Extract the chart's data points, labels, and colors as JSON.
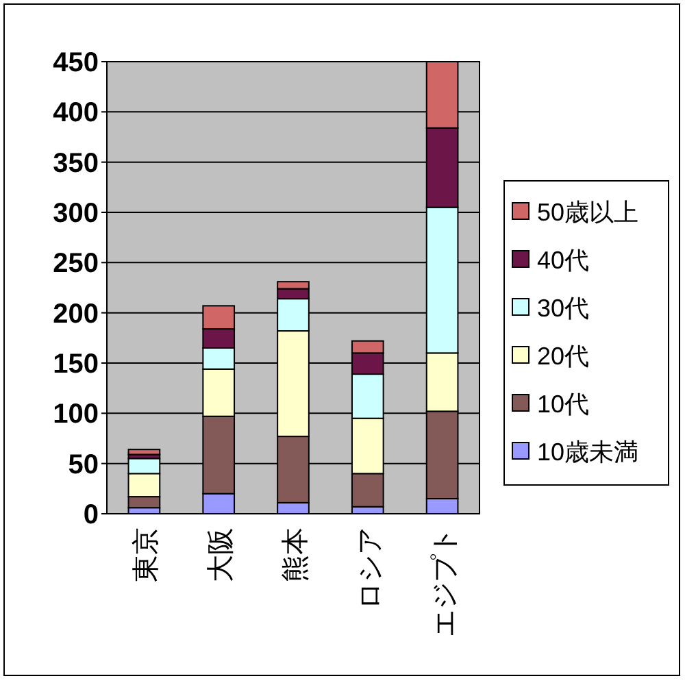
{
  "chart_data": {
    "type": "bar",
    "stacked": true,
    "categories": [
      "東京",
      "大阪",
      "熊本",
      "ロシア",
      "エジプト"
    ],
    "series": [
      {
        "name": "10歳未満",
        "color": "#9999ff",
        "values": [
          6,
          20,
          11,
          7,
          15
        ]
      },
      {
        "name": "10代",
        "color": "#835a58",
        "values": [
          11,
          77,
          66,
          33,
          87
        ]
      },
      {
        "name": "20代",
        "color": "#ffffcc",
        "values": [
          23,
          47,
          105,
          55,
          58
        ]
      },
      {
        "name": "30代",
        "color": "#ccffff",
        "values": [
          15,
          21,
          32,
          44,
          145
        ]
      },
      {
        "name": "40代",
        "color": "#6b1549",
        "values": [
          4,
          19,
          10,
          21,
          79
        ]
      },
      {
        "name": "50歳以上",
        "color": "#d06666",
        "values": [
          5,
          23,
          7,
          12,
          66
        ]
      }
    ],
    "ylim": [
      0,
      450
    ],
    "yticks": [
      0,
      50,
      100,
      150,
      200,
      250,
      300,
      350,
      400,
      450
    ],
    "grid": "y",
    "legend": "right"
  }
}
